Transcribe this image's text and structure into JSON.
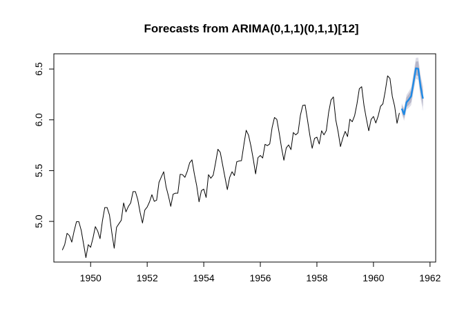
{
  "chart_data": {
    "type": "line",
    "title": "Forecasts from ARIMA(0,1,1)(0,1,1)[12]",
    "xlabel": "",
    "ylabel": "",
    "xlim": [
      1948.7,
      1962.2
    ],
    "ylim": [
      4.6,
      6.65
    ],
    "x_ticks": [
      1950,
      1952,
      1954,
      1956,
      1958,
      1960,
      1962
    ],
    "x_tick_labels": [
      "1950",
      "1952",
      "1954",
      "1956",
      "1958",
      "1960",
      "1962"
    ],
    "y_ticks": [
      5.0,
      5.5,
      6.0,
      6.5
    ],
    "y_tick_labels": [
      "5.0",
      "5.5",
      "6.0",
      "6.5"
    ],
    "grid": false,
    "legend": "none",
    "series": [
      {
        "kind": "observed",
        "color": "#000000",
        "x_start": 1949.0,
        "x_step": 0.0833333,
        "values": [
          4.718,
          4.771,
          4.883,
          4.86,
          4.796,
          4.905,
          4.997,
          4.997,
          4.913,
          4.779,
          4.644,
          4.771,
          4.745,
          4.836,
          4.949,
          4.905,
          4.83,
          5.004,
          5.136,
          5.136,
          5.063,
          4.89,
          4.736,
          4.942,
          4.977,
          5.011,
          5.182,
          5.094,
          5.147,
          5.182,
          5.293,
          5.293,
          5.215,
          5.088,
          4.984,
          5.112,
          5.142,
          5.193,
          5.263,
          5.198,
          5.209,
          5.384,
          5.438,
          5.489,
          5.342,
          5.252,
          5.148,
          5.268,
          5.278,
          5.278,
          5.464,
          5.46,
          5.434,
          5.493,
          5.576,
          5.606,
          5.468,
          5.352,
          5.193,
          5.303,
          5.318,
          5.236,
          5.46,
          5.425,
          5.455,
          5.576,
          5.71,
          5.68,
          5.557,
          5.434,
          5.313,
          5.434,
          5.489,
          5.451,
          5.587,
          5.595,
          5.598,
          5.753,
          5.897,
          5.849,
          5.743,
          5.613,
          5.468,
          5.628,
          5.649,
          5.624,
          5.759,
          5.746,
          5.763,
          5.924,
          6.023,
          6.004,
          5.872,
          5.724,
          5.602,
          5.724,
          5.753,
          5.707,
          5.875,
          5.852,
          5.872,
          6.045,
          6.142,
          6.146,
          6.001,
          5.849,
          5.72,
          5.817,
          5.829,
          5.762,
          5.892,
          5.852,
          5.894,
          6.075,
          6.196,
          6.225,
          6.001,
          5.883,
          5.737,
          5.82,
          5.886,
          5.835,
          6.006,
          5.981,
          6.04,
          6.157,
          6.306,
          6.326,
          6.138,
          6.009,
          5.892,
          6.004,
          6.033,
          5.969,
          6.038,
          6.133,
          6.157,
          6.282,
          6.433,
          6.407,
          6.23,
          6.133,
          5.966,
          6.068
        ]
      },
      {
        "kind": "forecast",
        "color": "#1e8ae6",
        "x_start": 1961.0,
        "x_step": 0.0833333,
        "values": [
          6.11,
          6.054,
          6.172,
          6.199,
          6.233,
          6.369,
          6.507,
          6.503,
          6.325,
          6.209
        ],
        "lo80": [
          6.075,
          6.012,
          6.125,
          6.146,
          6.175,
          6.306,
          6.44,
          6.431,
          6.249,
          6.129
        ],
        "hi80": [
          6.145,
          6.096,
          6.219,
          6.252,
          6.291,
          6.432,
          6.574,
          6.575,
          6.401,
          6.289
        ],
        "lo95": [
          6.056,
          5.99,
          6.1,
          6.118,
          6.144,
          6.273,
          6.404,
          6.393,
          6.209,
          6.087
        ],
        "hi95": [
          6.164,
          6.118,
          6.244,
          6.28,
          6.322,
          6.465,
          6.61,
          6.613,
          6.441,
          6.331
        ],
        "band80_color": "#b5b5c8",
        "band95_color": "#dcdce6"
      }
    ]
  }
}
